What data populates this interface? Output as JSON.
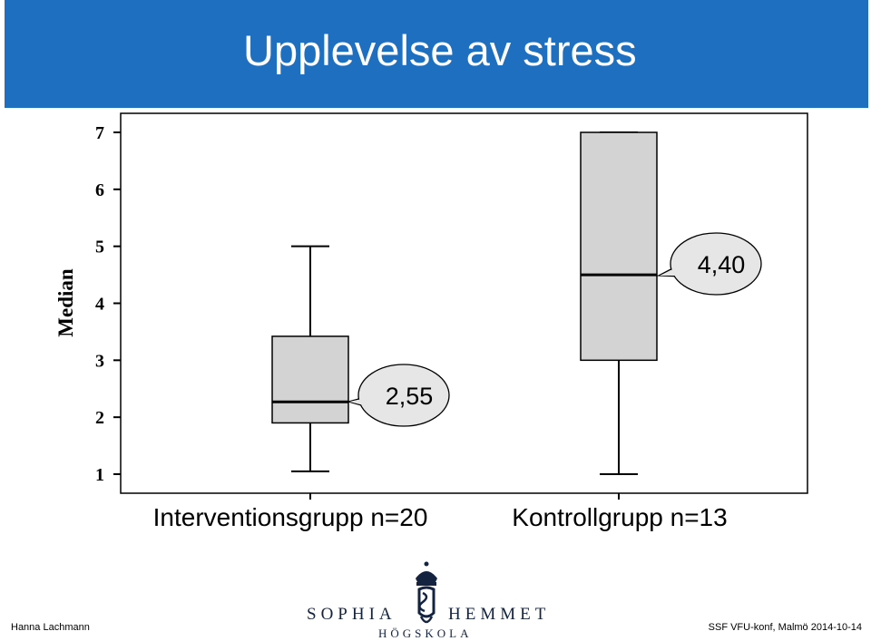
{
  "slide": {
    "title": "Upplevelse av stress",
    "footer_left": "Hanna Lachmann",
    "footer_right": "SSF VFU-konf, Malmö 2014-10-14"
  },
  "logo": {
    "word_left": "SOPHIA",
    "word_right": "HEMMET",
    "subtitle": "HÖGSKOLA",
    "brand_color": "#14233f"
  },
  "colors": {
    "title_bar": "#1f6fc0",
    "box_fill": "#d3d3d3",
    "callout_fill": "#e6e6e6"
  },
  "chart_data": {
    "type": "box",
    "ylabel": "Median",
    "ylim": [
      1,
      7
    ],
    "yticks": [
      "1",
      "2",
      "3",
      "4",
      "5",
      "6",
      "7"
    ],
    "categories": [
      "Interventionsgrupp n=20",
      "Kontrollgrupp n=13"
    ],
    "boxes": [
      {
        "name": "Interventionsgrupp n=20",
        "min": 1.05,
        "q1": 1.9,
        "median": 2.27,
        "q3": 3.42,
        "max": 5.0
      },
      {
        "name": "Kontrollgrupp n=13",
        "min": 1.0,
        "q1": 3.0,
        "median": 4.5,
        "q3": 7.0,
        "max": 7.0
      }
    ],
    "annotations": [
      "2,55",
      "4,40"
    ],
    "grid": false
  }
}
